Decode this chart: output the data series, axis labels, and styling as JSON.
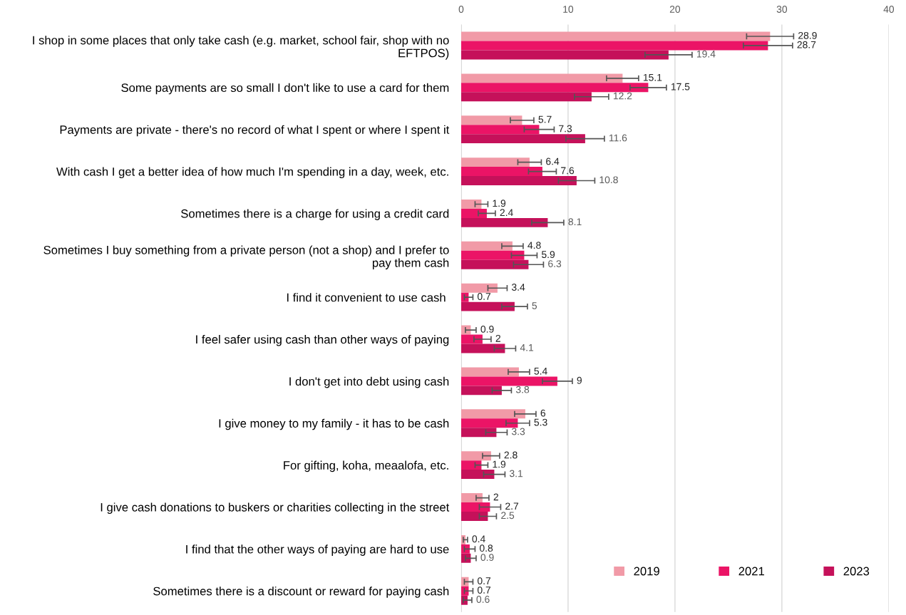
{
  "chart_data": {
    "type": "bar",
    "orientation": "horizontal",
    "categories": [
      "I shop in some places that only take cash (e.g. market, school fair, shop with no\nEFTPOS)",
      "Some payments are so small I don't like to use a card for them",
      "Payments are private - there's no record of what I spent or where I spent it",
      "With cash I get a better idea of how much I'm spending in a day, week, etc.",
      "Sometimes there is a charge for using a credit card",
      "Sometimes I buy something from a private person (not a shop) and I prefer to\npay them cash",
      "I find it convenient to use cash ",
      "I feel safer using cash than other ways of paying",
      "I don't get into debt using cash",
      "I give money to my family - it has to be cash",
      "For gifting, koha, meaalofa, etc.",
      "I give cash donations to buskers or charities collecting in the street",
      "I find that the other ways of paying are hard to use",
      "Sometimes there is a discount or reward for paying cash"
    ],
    "series": [
      {
        "name": "2019",
        "color": "#f19aa7",
        "values": [
          28.9,
          15.1,
          5.7,
          6.4,
          1.9,
          4.8,
          3.4,
          0.9,
          5.4,
          6,
          2.8,
          2,
          0.4,
          0.7
        ],
        "errors": [
          2.2,
          1.5,
          1.1,
          1.1,
          0.6,
          1.0,
          0.9,
          0.5,
          1.0,
          1.0,
          0.8,
          0.6,
          0.2,
          0.4
        ]
      },
      {
        "name": "2021",
        "color": "#eb1466",
        "values": [
          28.7,
          17.5,
          7.3,
          7.6,
          2.4,
          5.9,
          0.7,
          2,
          9,
          5.3,
          1.9,
          2.7,
          0.8,
          0.7
        ],
        "errors": [
          2.3,
          1.7,
          1.4,
          1.3,
          0.8,
          1.2,
          0.4,
          0.8,
          1.4,
          1.1,
          0.6,
          1.0,
          0.5,
          0.4
        ]
      },
      {
        "name": "2023",
        "color": "#c5115a",
        "values": [
          19.4,
          12.2,
          11.6,
          10.8,
          8.1,
          6.3,
          5,
          4.1,
          3.8,
          3.3,
          3.1,
          2.5,
          0.9,
          0.6
        ],
        "errors": [
          2.2,
          1.6,
          1.8,
          1.7,
          1.5,
          1.4,
          1.2,
          1.0,
          0.9,
          1.0,
          1.0,
          0.8,
          0.5,
          0.4
        ]
      }
    ],
    "xlim": [
      0,
      40
    ],
    "xticks": [
      0,
      10,
      20,
      30,
      40
    ],
    "grid": "x",
    "legend": "bottom right",
    "data_labels": true
  }
}
